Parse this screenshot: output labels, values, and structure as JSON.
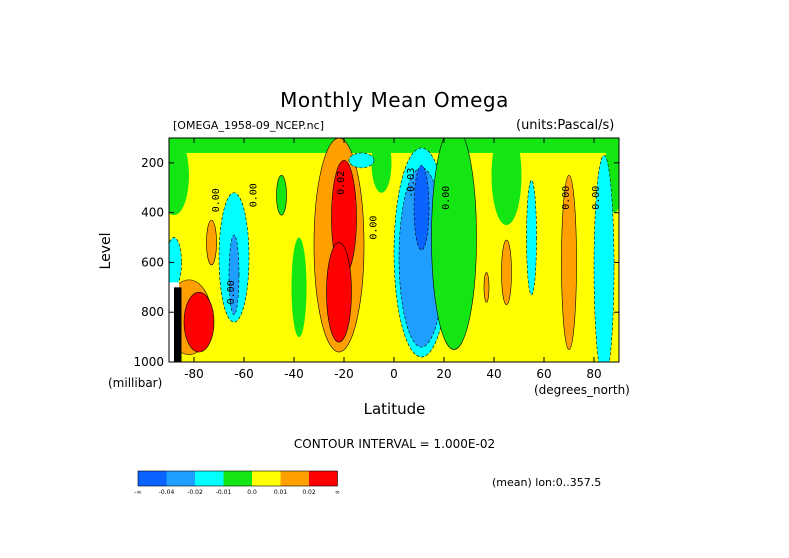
{
  "header": {
    "title": "Monthly Mean Omega",
    "dataset": "[OMEGA_1958-09_NCEP.nc]",
    "units": "(units:Pascal/s)"
  },
  "footer": {
    "contour_interval": "CONTOUR INTERVAL = 1.000E-02",
    "mean_label": "(mean) lon:0..357.5"
  },
  "colors": {
    "dark_blue": "#0a64ff",
    "blue": "#1e9fff",
    "cyan": "#00ffff",
    "green": "#14e614",
    "yellow": "#ffff00",
    "orange": "#ffa000",
    "red": "#ff0000",
    "black": "#000000"
  },
  "chart_data": {
    "type": "heatmap",
    "title": "Monthly Mean Omega",
    "xlabel": "Latitude",
    "x_unit_label": "(degrees_north)",
    "ylabel": "Level",
    "y_unit_label": "(millibar)",
    "xlim": [
      -90,
      90
    ],
    "ylim": [
      1000,
      100
    ],
    "x_ticks": [
      -80,
      -60,
      -40,
      -20,
      0,
      20,
      40,
      60,
      80
    ],
    "y_ticks": [
      200,
      400,
      600,
      800,
      1000
    ],
    "colorbar": {
      "colors": [
        "#0a64ff",
        "#1e9fff",
        "#00ffff",
        "#14e614",
        "#ffff00",
        "#ffa000",
        "#ff0000"
      ],
      "labels": [
        "-∞",
        "-0.04",
        "-0.02",
        "-0.01",
        "0.0",
        "0.01",
        "0.02",
        "∞"
      ]
    },
    "regions": [
      {
        "lat": -88,
        "p": 600,
        "rx": 3,
        "ry": 100,
        "color": "#00ffff"
      },
      {
        "lat": -73,
        "p": 520,
        "rx": 2,
        "ry": 90,
        "color": "#ffa000"
      },
      {
        "lat": -64,
        "p": 580,
        "rx": 6,
        "ry": 260,
        "color": "#00ffff"
      },
      {
        "lat": -64,
        "p": 650,
        "rx": 2,
        "ry": 160,
        "color": "#1e9fff"
      },
      {
        "lat": -82,
        "p": 820,
        "rx": 9,
        "ry": 150,
        "color": "#ffa000"
      },
      {
        "lat": -78,
        "p": 840,
        "rx": 6,
        "ry": 120,
        "color": "#ff0000"
      },
      {
        "lat": -45,
        "p": 330,
        "rx": 2,
        "ry": 80,
        "color": "#14e614"
      },
      {
        "lat": -22,
        "p": 530,
        "rx": 10,
        "ry": 430,
        "color": "#ffa000"
      },
      {
        "lat": -20,
        "p": 420,
        "rx": 5,
        "ry": 230,
        "color": "#ff0000"
      },
      {
        "lat": -22,
        "p": 720,
        "rx": 5,
        "ry": 200,
        "color": "#ff0000"
      },
      {
        "lat": -13,
        "p": 190,
        "rx": 5,
        "ry": 30,
        "color": "#00ffff"
      },
      {
        "lat": 11,
        "p": 560,
        "rx": 11,
        "ry": 420,
        "color": "#00ffff"
      },
      {
        "lat": 11,
        "p": 580,
        "rx": 9,
        "ry": 360,
        "color": "#1e9fff"
      },
      {
        "lat": 11,
        "p": 380,
        "rx": 3,
        "ry": 170,
        "color": "#0a64ff"
      },
      {
        "lat": 24,
        "p": 500,
        "rx": 9,
        "ry": 450,
        "color": "#14e614"
      },
      {
        "lat": 45,
        "p": 640,
        "rx": 2,
        "ry": 130,
        "color": "#ffa000"
      },
      {
        "lat": 37,
        "p": 700,
        "rx": 1,
        "ry": 60,
        "color": "#ffa000"
      },
      {
        "lat": 55,
        "p": 500,
        "rx": 2,
        "ry": 230,
        "color": "#00ffff"
      },
      {
        "lat": 70,
        "p": 600,
        "rx": 3,
        "ry": 350,
        "color": "#ffa000"
      },
      {
        "lat": 84,
        "p": 620,
        "rx": 4,
        "ry": 450,
        "color": "#00ffff"
      }
    ],
    "contour_labels": [
      {
        "lat": -70,
        "p": 350,
        "text": "0.00"
      },
      {
        "lat": -55,
        "p": 330,
        "text": "0.00"
      },
      {
        "lat": -64,
        "p": 720,
        "text": "0.00"
      },
      {
        "lat": -20,
        "p": 280,
        "text": "0.02"
      },
      {
        "lat": -7,
        "p": 460,
        "text": "0.00"
      },
      {
        "lat": 8,
        "p": 280,
        "text": "-0.03"
      },
      {
        "lat": 22,
        "p": 340,
        "text": "0.00"
      },
      {
        "lat": 70,
        "p": 340,
        "text": "0.00"
      },
      {
        "lat": 82,
        "p": 340,
        "text": "0.00"
      }
    ]
  }
}
